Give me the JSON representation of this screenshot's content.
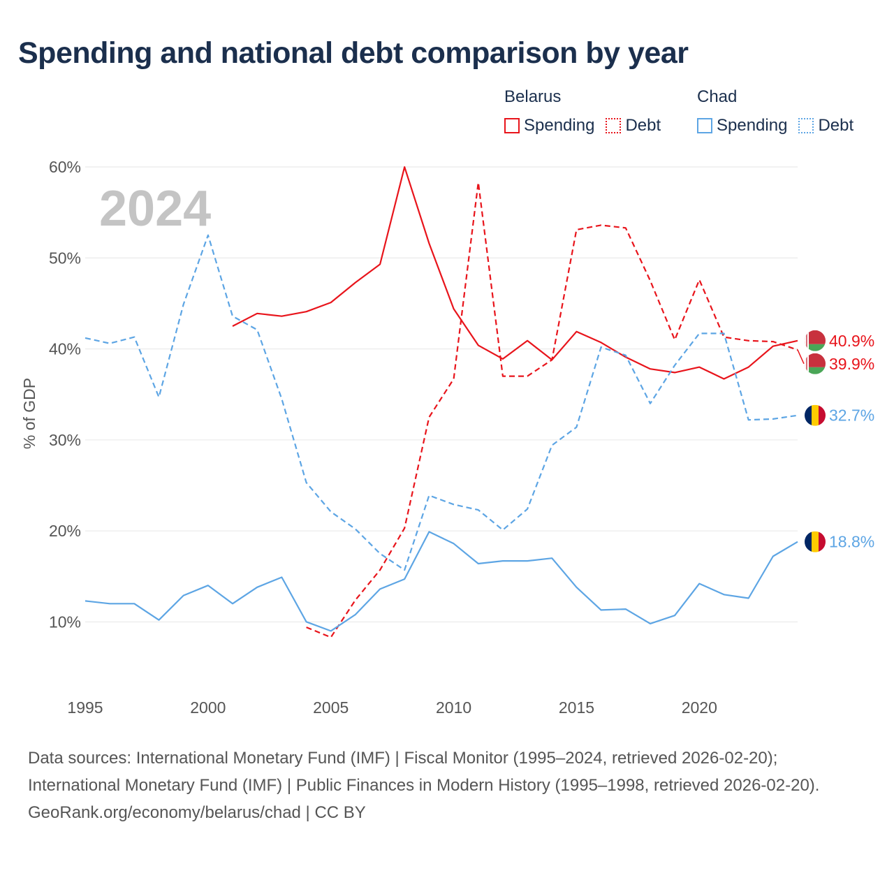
{
  "title": "Spending and national debt comparison by year",
  "legend": {
    "groups": [
      {
        "name": "Belarus",
        "color": "#e8141b",
        "items": [
          {
            "label": "Spending",
            "style": "solid"
          },
          {
            "label": "Debt",
            "style": "dotted"
          }
        ]
      },
      {
        "name": "Chad",
        "color": "#5da5e4",
        "items": [
          {
            "label": "Spending",
            "style": "solid"
          },
          {
            "label": "Debt",
            "style": "dotted"
          }
        ]
      }
    ]
  },
  "footer": {
    "sources": "Data sources: International Monetary Fund (IMF) | Fiscal Monitor (1995–2024, retrieved 2026-02-20); International Monetary Fund (IMF) | Public Finances in Modern History (1995–1998, retrieved 2026-02-20).",
    "attribution": "GeoRank.org/economy/belarus/chad | CC BY"
  },
  "chart_data": {
    "type": "line",
    "title": "Spending and national debt comparison by year",
    "year_watermark": "2024",
    "ylabel": "% of GDP",
    "xlabel": "",
    "xlim": [
      1995,
      2024
    ],
    "ylim": [
      3.5,
      62
    ],
    "x_ticks": [
      1995,
      2000,
      2005,
      2010,
      2015,
      2020
    ],
    "y_ticks": [
      10,
      20,
      30,
      40,
      50,
      60
    ],
    "y_tick_labels": [
      "10%",
      "20%",
      "30%",
      "40%",
      "50%",
      "60%"
    ],
    "grid": true,
    "series": [
      {
        "name": "Belarus Spending",
        "country": "Belarus",
        "metric": "Spending",
        "color": "#e8141b",
        "dash": "solid",
        "flag": "belarus",
        "end_label": "40.9%",
        "points": [
          [
            2001,
            42.5
          ],
          [
            2002,
            43.9
          ],
          [
            2003,
            43.6
          ],
          [
            2004,
            44.1
          ],
          [
            2005,
            45.1
          ],
          [
            2006,
            47.3
          ],
          [
            2007,
            49.3
          ],
          [
            2008,
            60.0
          ],
          [
            2009,
            51.6
          ],
          [
            2010,
            44.4
          ],
          [
            2011,
            40.4
          ],
          [
            2012,
            38.9
          ],
          [
            2013,
            40.9
          ],
          [
            2014,
            38.8
          ],
          [
            2015,
            41.9
          ],
          [
            2016,
            40.7
          ],
          [
            2017,
            39.1
          ],
          [
            2018,
            37.8
          ],
          [
            2019,
            37.4
          ],
          [
            2020,
            38.0
          ],
          [
            2021,
            36.7
          ],
          [
            2022,
            38.0
          ],
          [
            2023,
            40.3
          ],
          [
            2024,
            40.9
          ]
        ]
      },
      {
        "name": "Belarus Debt",
        "country": "Belarus",
        "metric": "Debt",
        "color": "#e8141b",
        "dash": "dashed",
        "flag": "belarus",
        "end_label": "39.9%",
        "points": [
          [
            2004,
            9.4
          ],
          [
            2005,
            8.3
          ],
          [
            2006,
            12.4
          ],
          [
            2007,
            15.7
          ],
          [
            2008,
            20.3
          ],
          [
            2009,
            32.5
          ],
          [
            2010,
            36.7
          ],
          [
            2011,
            58.3
          ],
          [
            2012,
            37.0
          ],
          [
            2013,
            37.0
          ],
          [
            2014,
            38.8
          ],
          [
            2015,
            53.1
          ],
          [
            2016,
            53.6
          ],
          [
            2017,
            53.3
          ],
          [
            2018,
            47.5
          ],
          [
            2019,
            41.0
          ],
          [
            2020,
            47.6
          ],
          [
            2021,
            41.3
          ],
          [
            2022,
            40.9
          ],
          [
            2023,
            40.8
          ],
          [
            2024,
            39.9
          ]
        ]
      },
      {
        "name": "Chad Spending",
        "country": "Chad",
        "metric": "Spending",
        "color": "#5da5e4",
        "dash": "solid",
        "flag": "chad",
        "end_label": "18.8%",
        "points": [
          [
            1995,
            12.3
          ],
          [
            1996,
            12.0
          ],
          [
            1997,
            12.0
          ],
          [
            1998,
            10.2
          ],
          [
            1999,
            12.9
          ],
          [
            2000,
            14.0
          ],
          [
            2001,
            12.0
          ],
          [
            2002,
            13.8
          ],
          [
            2003,
            14.9
          ],
          [
            2004,
            10.0
          ],
          [
            2005,
            9.0
          ],
          [
            2006,
            10.8
          ],
          [
            2007,
            13.6
          ],
          [
            2008,
            14.7
          ],
          [
            2009,
            19.9
          ],
          [
            2010,
            18.6
          ],
          [
            2011,
            16.4
          ],
          [
            2012,
            16.7
          ],
          [
            2013,
            16.7
          ],
          [
            2014,
            17.0
          ],
          [
            2015,
            13.8
          ],
          [
            2016,
            11.3
          ],
          [
            2017,
            11.4
          ],
          [
            2018,
            9.8
          ],
          [
            2019,
            10.7
          ],
          [
            2020,
            14.2
          ],
          [
            2021,
            13.0
          ],
          [
            2022,
            12.6
          ],
          [
            2023,
            17.2
          ],
          [
            2024,
            18.8
          ]
        ]
      },
      {
        "name": "Chad Debt",
        "country": "Chad",
        "metric": "Debt",
        "color": "#5da5e4",
        "dash": "dashed",
        "flag": "chad",
        "end_label": "32.7%",
        "points": [
          [
            1995,
            41.2
          ],
          [
            1996,
            40.6
          ],
          [
            1997,
            41.3
          ],
          [
            1998,
            34.7
          ],
          [
            1999,
            44.9
          ],
          [
            2000,
            52.5
          ],
          [
            2001,
            43.6
          ],
          [
            2002,
            42.1
          ],
          [
            2003,
            34.5
          ],
          [
            2004,
            25.3
          ],
          [
            2005,
            22.1
          ],
          [
            2006,
            20.2
          ],
          [
            2007,
            17.5
          ],
          [
            2008,
            15.7
          ],
          [
            2009,
            23.9
          ],
          [
            2010,
            22.9
          ],
          [
            2011,
            22.3
          ],
          [
            2012,
            20.1
          ],
          [
            2013,
            22.4
          ],
          [
            2014,
            29.4
          ],
          [
            2015,
            31.4
          ],
          [
            2016,
            40.2
          ],
          [
            2017,
            39.3
          ],
          [
            2018,
            34.0
          ],
          [
            2019,
            38.2
          ],
          [
            2020,
            41.7
          ],
          [
            2021,
            41.7
          ],
          [
            2022,
            32.2
          ],
          [
            2023,
            32.3
          ],
          [
            2024,
            32.7
          ]
        ]
      }
    ]
  }
}
